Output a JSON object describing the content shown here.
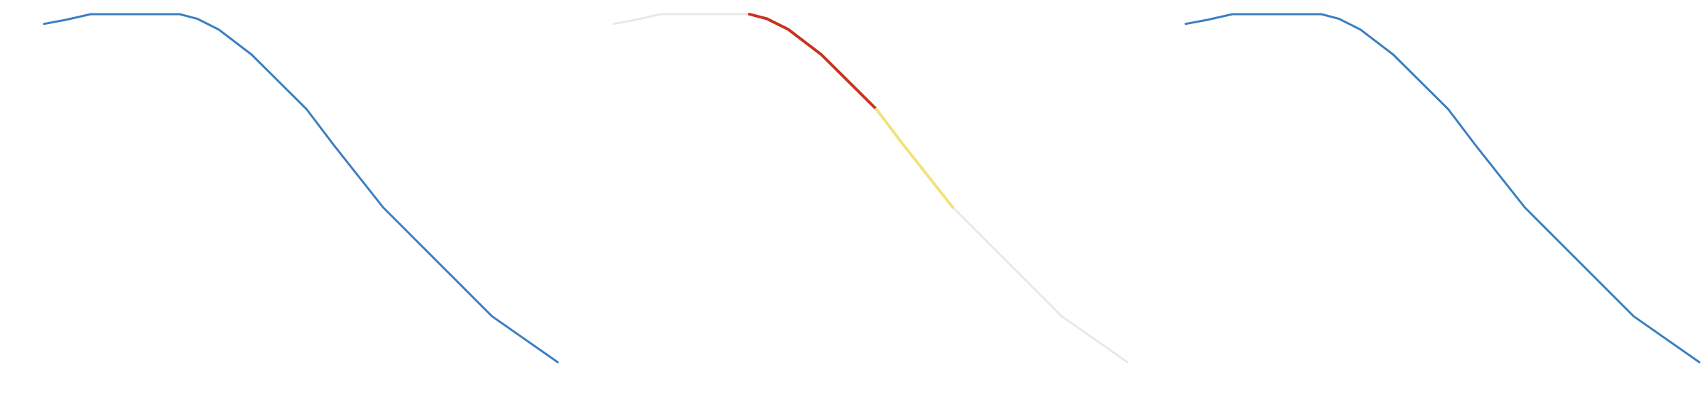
{
  "chart_data": [
    {
      "type": "line",
      "x": [
        0,
        4.3,
        9.1,
        26.4,
        29.8,
        34.0,
        40.4,
        51.1,
        56.4,
        66.0,
        87.2,
        100
      ],
      "series": [
        {
          "color": "#3a7fc0",
          "values": [
            97.2,
            98.4,
            100,
            100,
            98.7,
            95.6,
            88.4,
            72.7,
            62.4,
            44.5,
            13.2,
            0
          ]
        }
      ],
      "xlim": [
        0,
        100
      ],
      "ylim": [
        0,
        100
      ]
    },
    {
      "type": "line",
      "x": [
        0,
        4.3,
        9.1,
        26.4,
        29.8,
        34.0,
        40.4,
        51.1,
        56.4,
        66.0,
        87.2,
        100
      ],
      "series": [
        {
          "color": "#e8e8e8",
          "values": [
            97.2,
            98.4,
            100,
            100,
            98.7,
            95.6,
            88.4,
            72.7,
            62.4,
            44.5,
            13.2,
            0
          ]
        },
        {
          "color": "#c8321e",
          "values": [
            null,
            null,
            null,
            100,
            98.7,
            95.6,
            88.4,
            72.7,
            null,
            null,
            null,
            null
          ]
        },
        {
          "color": "#f2e27a",
          "values": [
            null,
            null,
            null,
            null,
            null,
            null,
            null,
            72.7,
            62.4,
            44.5,
            null,
            null
          ]
        }
      ],
      "xlim": [
        0,
        100
      ],
      "ylim": [
        0,
        100
      ]
    },
    {
      "type": "line",
      "x": [
        0,
        4.3,
        9.1,
        26.4,
        29.8,
        34.0,
        40.4,
        51.1,
        56.4,
        66.0,
        87.2,
        100
      ],
      "series": [
        {
          "color": "#3a7fc0",
          "values": [
            97.2,
            98.4,
            100,
            100,
            98.7,
            95.6,
            88.4,
            72.7,
            62.4,
            44.5,
            13.2,
            0
          ]
        }
      ],
      "xlim": [
        0,
        100
      ],
      "ylim": [
        0,
        100
      ]
    }
  ]
}
